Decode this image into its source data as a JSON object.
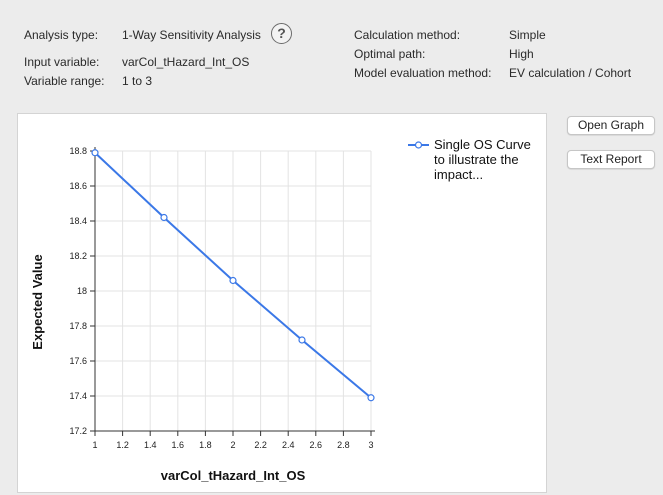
{
  "info": {
    "analysis_type_label": "Analysis type:",
    "analysis_type_value": "1-Way Sensitivity Analysis",
    "input_variable_label": "Input variable:",
    "input_variable_value": "varCol_tHazard_Int_OS",
    "variable_range_label": "Variable range:",
    "variable_range_value": "1 to 3",
    "calc_method_label": "Calculation method:",
    "calc_method_value": "Simple",
    "optimal_path_label": "Optimal path:",
    "optimal_path_value": "High",
    "model_eval_label": "Model evaluation method:",
    "model_eval_value": "EV calculation / Cohort"
  },
  "help_glyph": "?",
  "buttons": {
    "open_graph": "Open Graph",
    "text_report": "Text Report"
  },
  "colors": {
    "series": "#3b78e7"
  },
  "chart_data": {
    "type": "line",
    "xlabel": "varCol_tHazard_Int_OS",
    "ylabel": "Expected Value",
    "xlim": [
      1,
      3
    ],
    "ylim": [
      17.2,
      18.8
    ],
    "x_ticks": [
      "1",
      "1.2",
      "1.4",
      "1.6",
      "1.8",
      "2",
      "2.2",
      "2.4",
      "2.6",
      "2.8",
      "3"
    ],
    "y_ticks": [
      "17.2",
      "17.4",
      "17.6",
      "17.8",
      "18",
      "18.2",
      "18.4",
      "18.6",
      "18.8"
    ],
    "grid": true,
    "legend_position": "right",
    "series": [
      {
        "name": "Single OS Curve to illustrate the impact...",
        "legend_lines": [
          "Single OS Curve",
          "to illustrate the",
          "impact..."
        ],
        "x": [
          1,
          1.5,
          2,
          2.5,
          3
        ],
        "y": [
          18.79,
          18.42,
          18.06,
          17.72,
          17.39
        ]
      }
    ]
  }
}
